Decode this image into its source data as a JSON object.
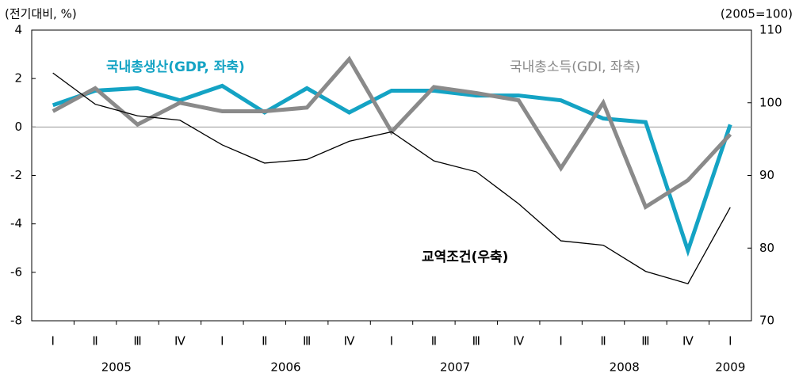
{
  "chart_data": {
    "type": "line",
    "left_unit": "(전기대비, %)",
    "right_unit": "(2005=100)",
    "categories": [
      "Ⅰ",
      "Ⅱ",
      "Ⅲ",
      "Ⅳ",
      "Ⅰ",
      "Ⅱ",
      "Ⅲ",
      "Ⅳ",
      "Ⅰ",
      "Ⅱ",
      "Ⅲ",
      "Ⅳ",
      "Ⅰ",
      "Ⅱ",
      "Ⅲ",
      "Ⅳ",
      "Ⅰ"
    ],
    "years": [
      "2005",
      "2006",
      "2007",
      "2008",
      "2009"
    ],
    "ylim": [
      -8,
      4
    ],
    "yticks": [
      -8,
      -6,
      -4,
      -2,
      0,
      2,
      4
    ],
    "y2lim": [
      70,
      110
    ],
    "y2ticks": [
      70,
      80,
      90,
      100,
      110
    ],
    "series": [
      {
        "name": "국내총생산(GDP, 좌축)",
        "color": "#14a3c4",
        "width": 5,
        "values": [
          0.9,
          1.5,
          1.6,
          1.1,
          1.7,
          0.6,
          1.6,
          0.6,
          1.5,
          1.5,
          1.3,
          1.3,
          1.1,
          0.35,
          0.2,
          -5.1,
          0.1
        ]
      },
      {
        "name": "국내총소득(GDI, 좌축)",
        "color": "#8a8a8a",
        "width": 5,
        "values": [
          0.65,
          1.6,
          0.1,
          1.0,
          0.65,
          0.65,
          0.8,
          2.8,
          -0.2,
          1.65,
          1.4,
          1.1,
          -1.7,
          1.0,
          -3.3,
          -2.2,
          -0.3
        ]
      },
      {
        "name": "교역조건(우축)",
        "color": "#000000",
        "width": 1.3,
        "axis": "y2",
        "values": [
          104.1,
          99.8,
          98.2,
          97.6,
          94.2,
          91.7,
          92.2,
          94.7,
          96.0,
          92.0,
          90.5,
          86.1,
          81.0,
          80.4,
          76.8,
          75.1,
          85.6
        ]
      }
    ]
  }
}
